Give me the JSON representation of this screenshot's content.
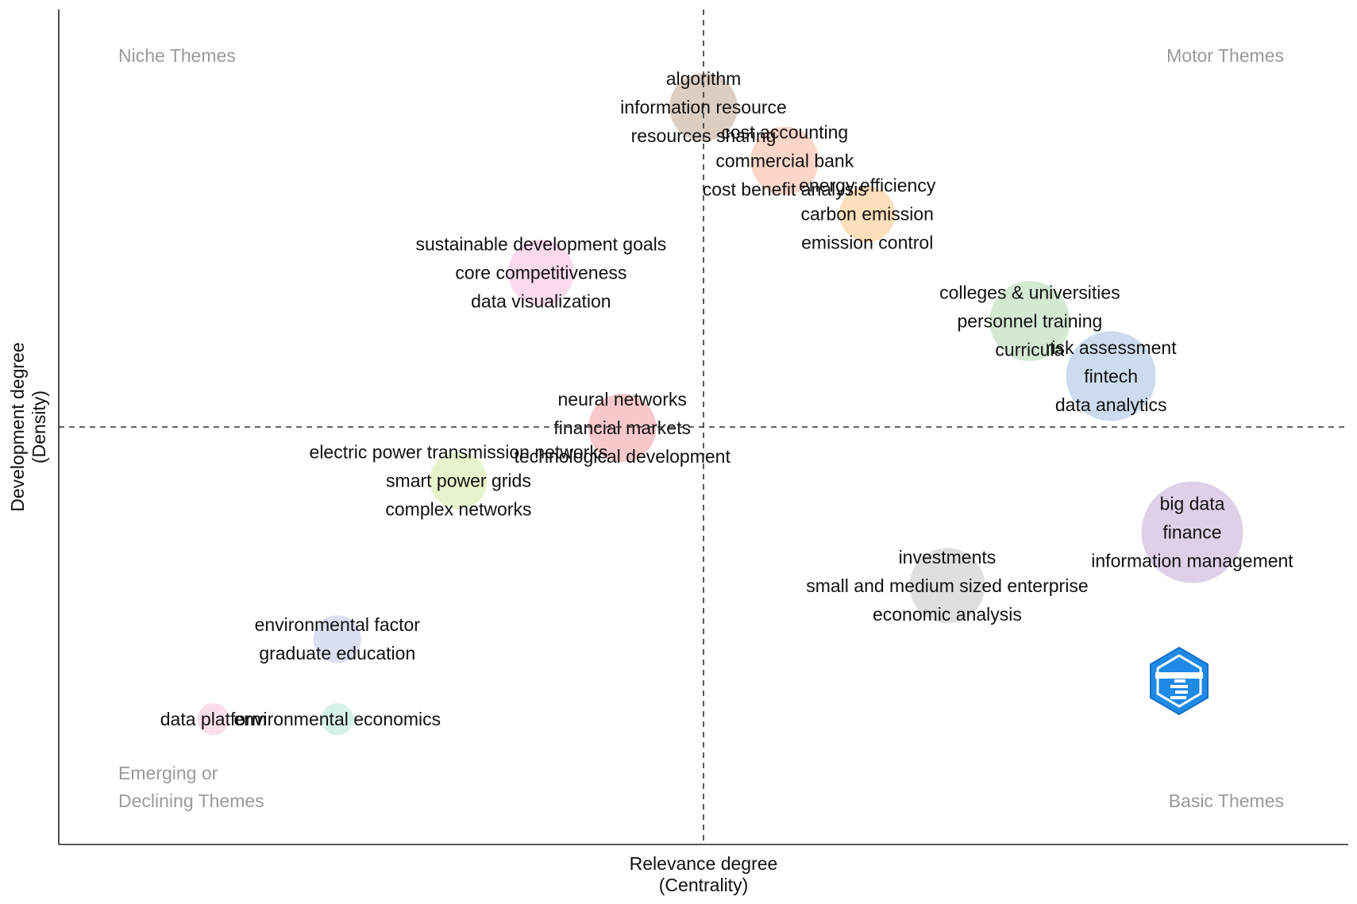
{
  "chart_data": {
    "type": "scatter",
    "title": "",
    "xlabel": "Relevance degree",
    "xlabel_sub": "(Centrality)",
    "ylabel": "Development degree",
    "ylabel_sub": "(Density)",
    "quadrants": {
      "top_left": "Niche Themes",
      "top_right": "Motor Themes",
      "bottom_left": [
        "Emerging or",
        "Declining Themes"
      ],
      "bottom_right": "Basic Themes"
    },
    "xlim": [
      0,
      1
    ],
    "ylim": [
      0,
      1
    ],
    "reference_lines": {
      "x": 0.5,
      "y": 0.5
    },
    "grid": false,
    "logo": "bibliometrix-logo",
    "colors": {
      "brown": "#d9c9bd",
      "salmon": "#fbd1c3",
      "orange": "#fddcb4",
      "pink": "#fbd6ec",
      "green": "#cfe7cd",
      "blue": "#c6d8ec",
      "red": "#f6c2c4",
      "lime": "#e4f2c6",
      "purple": "#dccbe7",
      "gray": "#dcdcdc",
      "lavender": "#d6dcf0",
      "lightpink": "#f9dbe8",
      "mint": "#d2efe6"
    },
    "points": [
      {
        "x": 0.5,
        "y": 0.883,
        "size": 0.45,
        "color": "brown",
        "labels": [
          "algorithm",
          "information resource",
          "resources sharing"
        ]
      },
      {
        "x": 0.563,
        "y": 0.819,
        "size": 0.45,
        "color": "salmon",
        "labels": [
          "cost accounting",
          "commercial bank",
          "cost benefit analysis"
        ]
      },
      {
        "x": 0.627,
        "y": 0.755,
        "size": 0.3,
        "color": "orange",
        "labels": [
          "energy efficiency",
          "carbon emission",
          "emission control"
        ]
      },
      {
        "x": 0.374,
        "y": 0.685,
        "size": 0.42,
        "color": "pink",
        "labels": [
          "sustainable development goals",
          "core competitiveness",
          "data visualization"
        ]
      },
      {
        "x": 0.753,
        "y": 0.627,
        "size": 0.62,
        "color": "green",
        "labels": [
          "colleges & universities",
          "personnel training",
          "curricula"
        ]
      },
      {
        "x": 0.816,
        "y": 0.561,
        "size": 0.78,
        "color": "blue",
        "labels": [
          "risk assessment",
          "fintech",
          "data analytics"
        ]
      },
      {
        "x": 0.437,
        "y": 0.499,
        "size": 0.45,
        "color": "red",
        "labels": [
          "neural networks",
          "financial markets",
          "technological development"
        ]
      },
      {
        "x": 0.31,
        "y": 0.436,
        "size": 0.32,
        "color": "lime",
        "labels": [
          "electric power transmission networks",
          "smart power grids",
          "complex networks"
        ]
      },
      {
        "x": 0.879,
        "y": 0.374,
        "size": 1.0,
        "color": "purple",
        "labels": [
          "big data",
          "finance",
          "information management"
        ]
      },
      {
        "x": 0.689,
        "y": 0.31,
        "size": 0.55,
        "color": "gray",
        "labels": [
          "investments",
          "small and medium sized enterprise",
          "economic analysis"
        ]
      },
      {
        "x": 0.216,
        "y": 0.246,
        "size": 0.22,
        "color": "lavender",
        "labels": [
          "environmental factor",
          "graduate education"
        ]
      },
      {
        "x": 0.12,
        "y": 0.15,
        "size": 0.1,
        "color": "lightpink",
        "labels": [
          "data platform"
        ]
      },
      {
        "x": 0.216,
        "y": 0.15,
        "size": 0.1,
        "color": "mint",
        "labels": [
          "environmental economics"
        ]
      }
    ]
  }
}
